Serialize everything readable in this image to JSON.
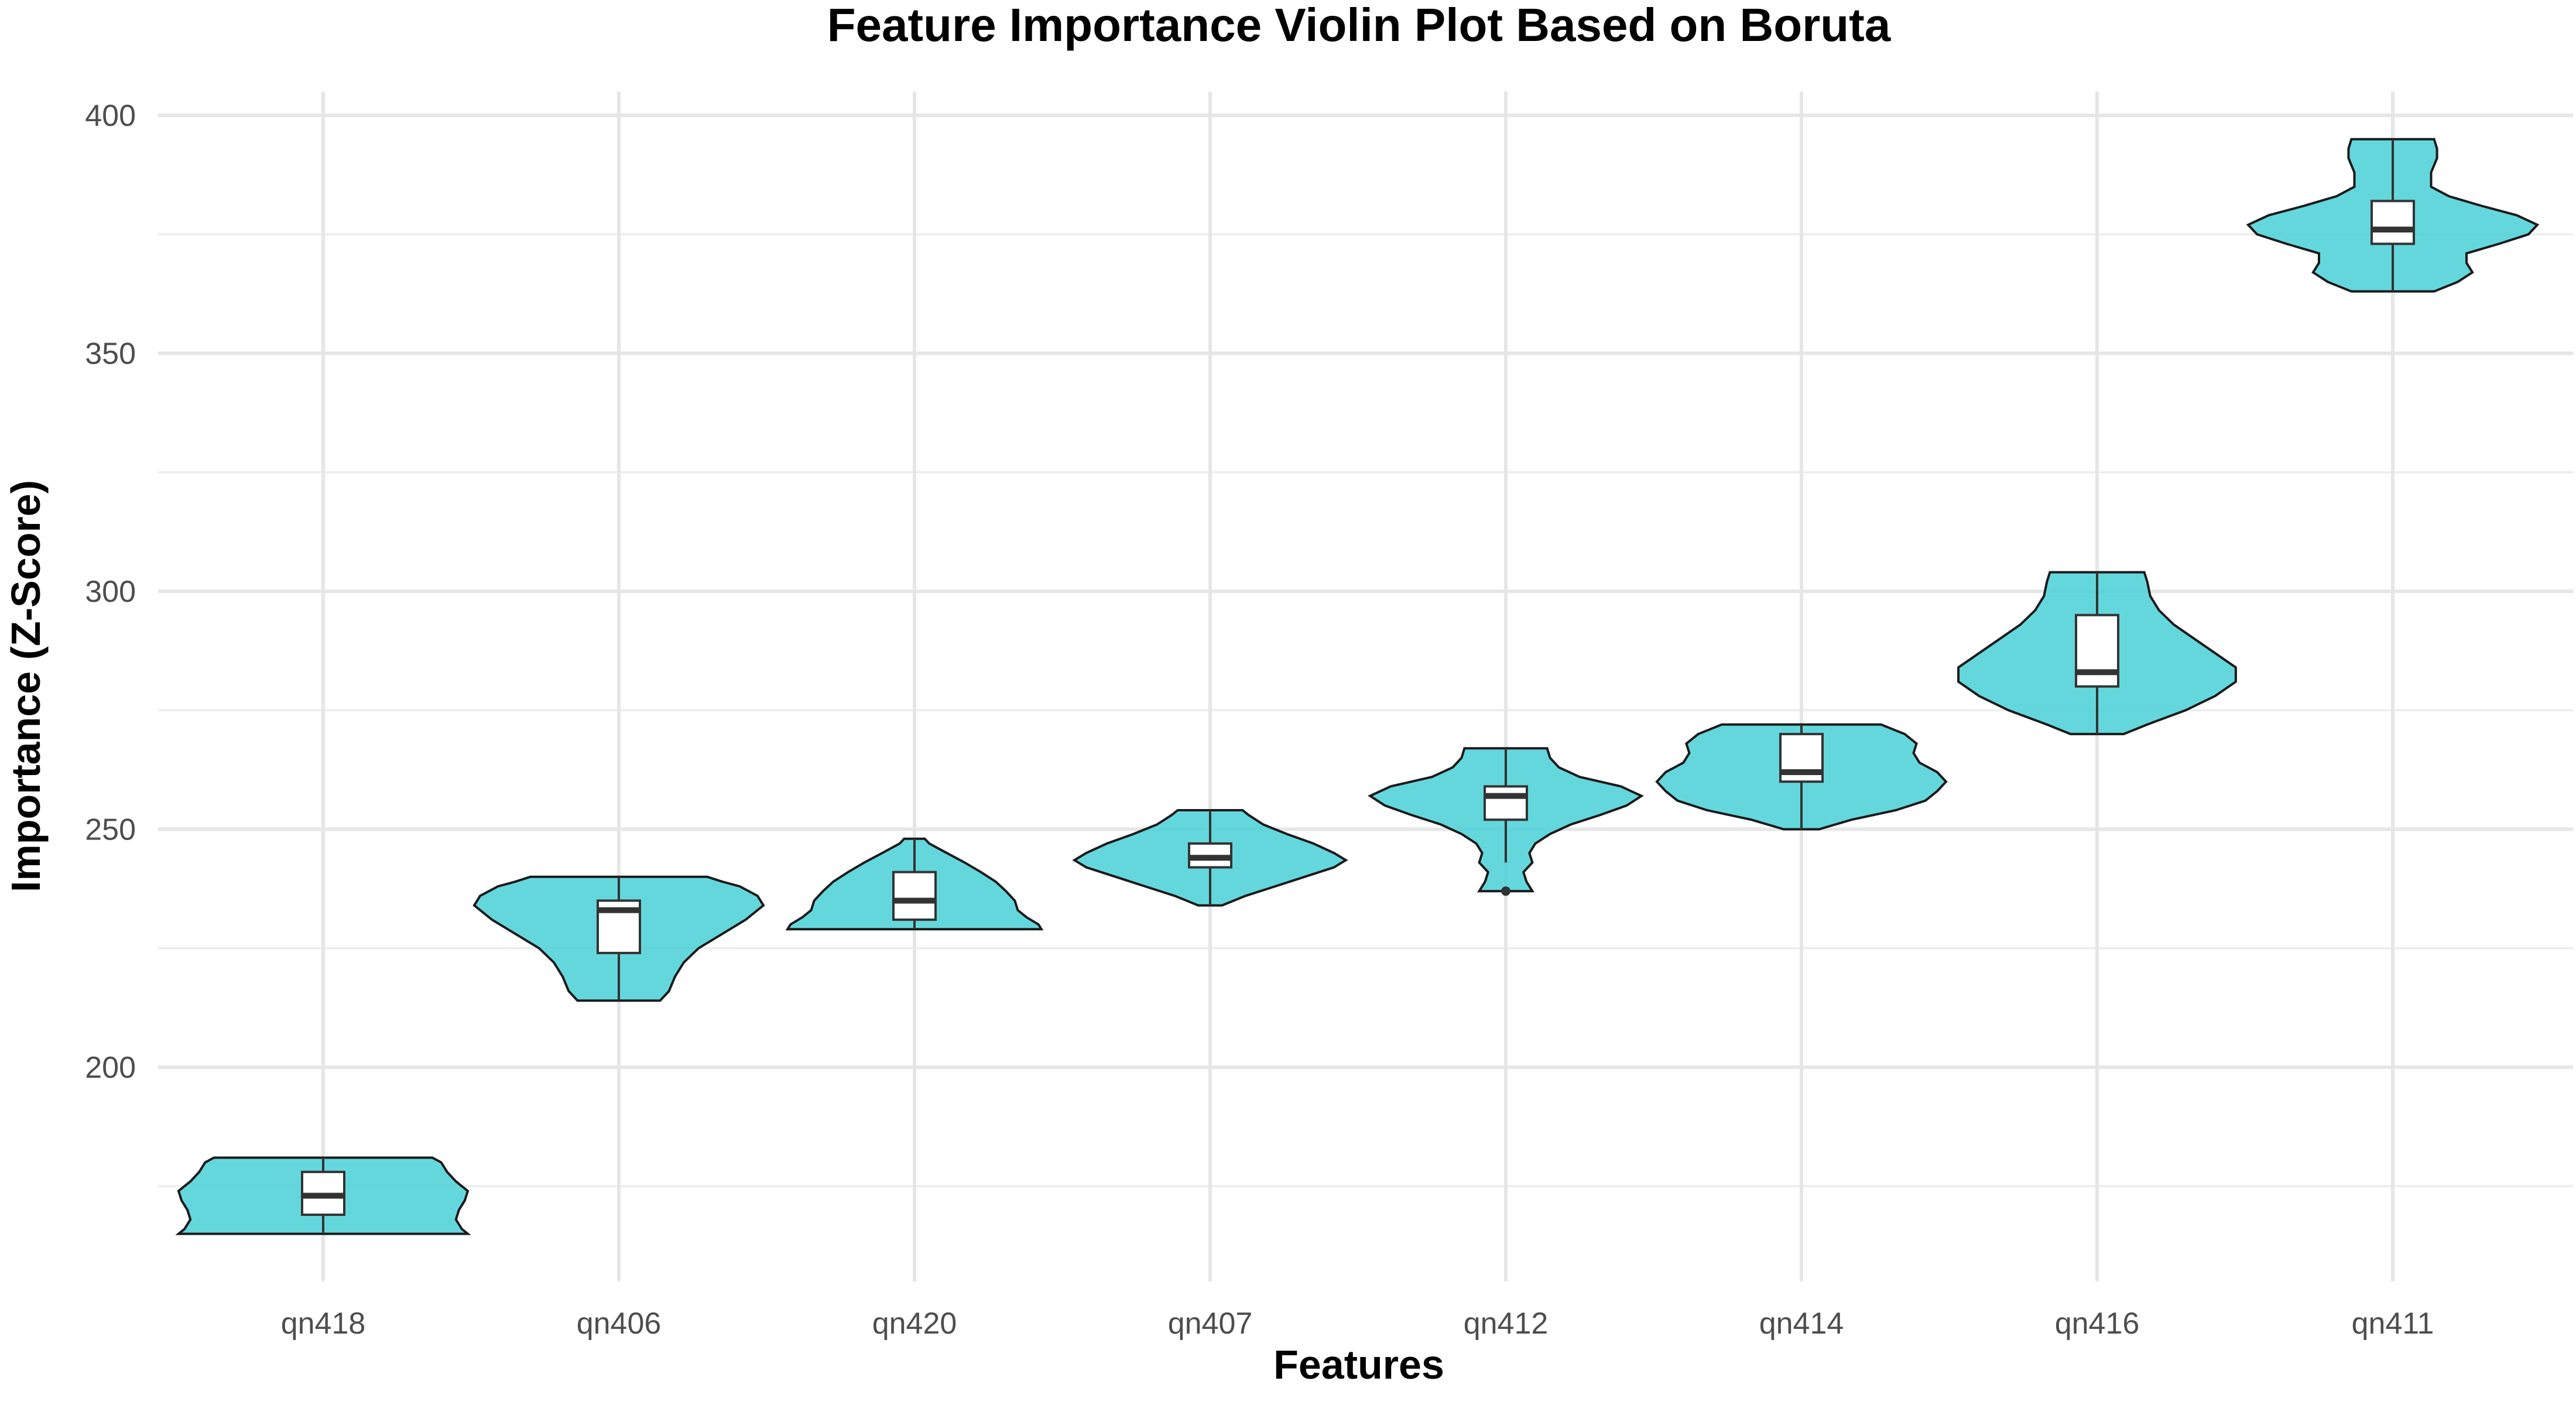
{
  "chart_data": {
    "type": "violin",
    "title": "Feature Importance Violin Plot Based on Boruta",
    "xlabel": "Features",
    "ylabel": "Importance (Z-Score)",
    "ylim": [
      155,
      405
    ],
    "yticks": [
      200,
      250,
      300,
      350,
      400
    ],
    "grid": true,
    "fill_color": "#4FD2D8",
    "features": [
      {
        "name": "qn418",
        "min": 165,
        "max": 181,
        "q1": 169,
        "median": 173,
        "q3": 178,
        "density": [
          [
            165,
            0.98
          ],
          [
            166,
            0.94
          ],
          [
            168,
            0.9
          ],
          [
            170,
            0.92
          ],
          [
            172,
            0.96
          ],
          [
            174,
            0.98
          ],
          [
            176,
            0.9
          ],
          [
            178,
            0.84
          ],
          [
            180,
            0.8
          ],
          [
            181,
            0.74
          ]
        ],
        "outliers": []
      },
      {
        "name": "qn406",
        "min": 214,
        "max": 240,
        "q1": 224,
        "median": 233,
        "q3": 235,
        "density": [
          [
            214,
            0.28
          ],
          [
            216,
            0.34
          ],
          [
            219,
            0.38
          ],
          [
            222,
            0.44
          ],
          [
            225,
            0.54
          ],
          [
            228,
            0.7
          ],
          [
            231,
            0.86
          ],
          [
            234,
            0.98
          ],
          [
            236,
            0.94
          ],
          [
            238,
            0.82
          ],
          [
            239,
            0.7
          ],
          [
            240,
            0.6
          ]
        ],
        "outliers": []
      },
      {
        "name": "qn420",
        "min": 229,
        "max": 248,
        "q1": 231,
        "median": 235,
        "q3": 241,
        "density": [
          [
            229,
            0.86
          ],
          [
            230,
            0.84
          ],
          [
            231.5,
            0.76
          ],
          [
            233,
            0.7
          ],
          [
            235,
            0.68
          ],
          [
            237,
            0.62
          ],
          [
            239,
            0.55
          ],
          [
            241,
            0.45
          ],
          [
            243,
            0.34
          ],
          [
            245,
            0.22
          ],
          [
            247,
            0.1
          ],
          [
            248,
            0.07
          ]
        ],
        "outliers": []
      },
      {
        "name": "qn407",
        "min": 234,
        "max": 254,
        "q1": 242,
        "median": 244,
        "q3": 247,
        "density": [
          [
            234,
            0.08
          ],
          [
            236,
            0.24
          ],
          [
            238,
            0.44
          ],
          [
            240,
            0.64
          ],
          [
            242,
            0.84
          ],
          [
            243.5,
            0.92
          ],
          [
            245,
            0.84
          ],
          [
            247,
            0.7
          ],
          [
            249,
            0.52
          ],
          [
            251,
            0.36
          ],
          [
            253,
            0.26
          ],
          [
            254,
            0.22
          ]
        ],
        "outliers": []
      },
      {
        "name": "qn412",
        "min": 243,
        "max": 267,
        "q1": 252,
        "median": 257,
        "q3": 259,
        "density": [
          [
            237,
            0.18
          ],
          [
            239,
            0.14
          ],
          [
            241,
            0.12
          ],
          [
            243,
            0.18
          ],
          [
            245,
            0.16
          ],
          [
            247,
            0.2
          ],
          [
            249,
            0.3
          ],
          [
            251,
            0.44
          ],
          [
            253,
            0.64
          ],
          [
            255,
            0.82
          ],
          [
            257,
            0.92
          ],
          [
            259,
            0.78
          ],
          [
            261,
            0.5
          ],
          [
            263,
            0.36
          ],
          [
            265,
            0.3
          ],
          [
            267,
            0.28
          ]
        ],
        "outliers": [
          237
        ]
      },
      {
        "name": "qn414",
        "min": 250,
        "max": 272,
        "q1": 260,
        "median": 262,
        "q3": 270,
        "density": [
          [
            250,
            0.12
          ],
          [
            252,
            0.34
          ],
          [
            254,
            0.64
          ],
          [
            256,
            0.84
          ],
          [
            258,
            0.92
          ],
          [
            260,
            0.98
          ],
          [
            262,
            0.92
          ],
          [
            264,
            0.8
          ],
          [
            266,
            0.76
          ],
          [
            268,
            0.78
          ],
          [
            270,
            0.7
          ],
          [
            271,
            0.62
          ],
          [
            272,
            0.54
          ]
        ],
        "outliers": []
      },
      {
        "name": "qn416",
        "min": 270,
        "max": 304,
        "q1": 280,
        "median": 283,
        "q3": 295,
        "density": [
          [
            270,
            0.18
          ],
          [
            272,
            0.34
          ],
          [
            275,
            0.6
          ],
          [
            278,
            0.8
          ],
          [
            281,
            0.94
          ],
          [
            284,
            0.94
          ],
          [
            287,
            0.8
          ],
          [
            290,
            0.66
          ],
          [
            293,
            0.52
          ],
          [
            296,
            0.42
          ],
          [
            299,
            0.36
          ],
          [
            302,
            0.34
          ],
          [
            304,
            0.32
          ]
        ],
        "outliers": []
      },
      {
        "name": "qn411",
        "min": 363,
        "max": 395,
        "q1": 373,
        "median": 376,
        "q3": 382,
        "density": [
          [
            363,
            0.28
          ],
          [
            365,
            0.44
          ],
          [
            367,
            0.54
          ],
          [
            369,
            0.5
          ],
          [
            371,
            0.5
          ],
          [
            373,
            0.72
          ],
          [
            375,
            0.92
          ],
          [
            377,
            0.98
          ],
          [
            379,
            0.84
          ],
          [
            381,
            0.6
          ],
          [
            383,
            0.38
          ],
          [
            385,
            0.26
          ],
          [
            388,
            0.26
          ],
          [
            391,
            0.3
          ],
          [
            393,
            0.3
          ],
          [
            395,
            0.28
          ]
        ],
        "outliers": []
      }
    ]
  }
}
